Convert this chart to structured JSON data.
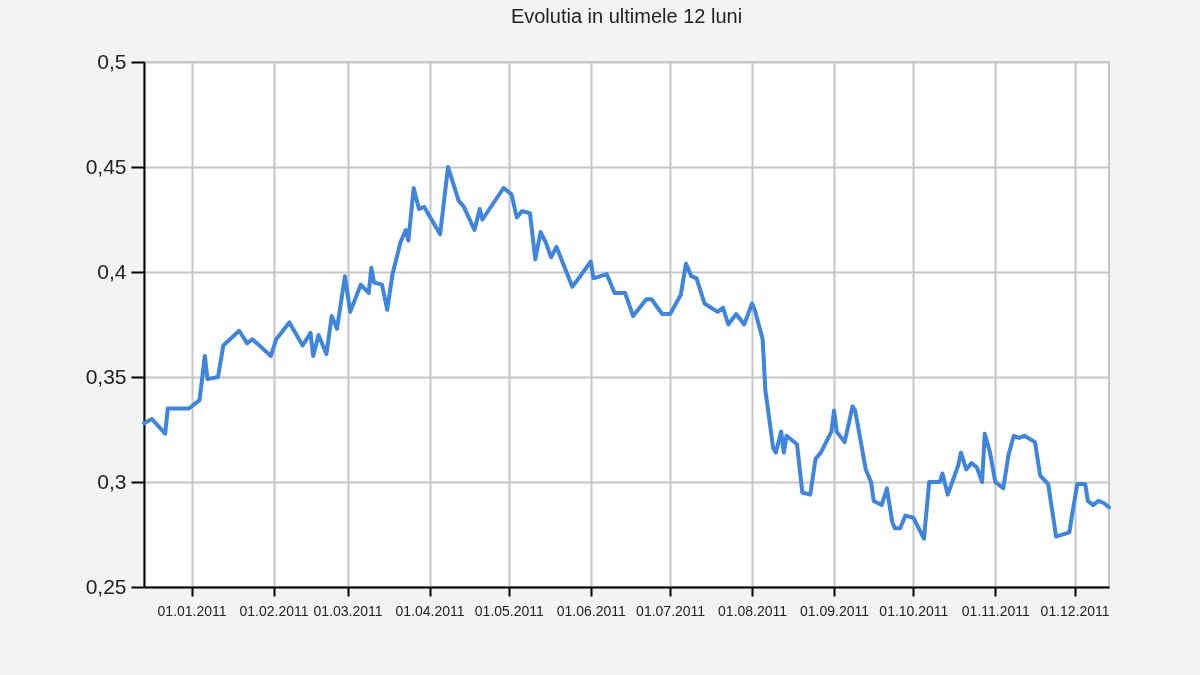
{
  "chart_data": {
    "type": "line",
    "title": "Evolutia in ultimele 12 luni",
    "x": [
      "2010-12-14",
      "2010-12-17",
      "2010-12-22",
      "2010-12-23",
      "2010-12-31",
      "2011-01-04",
      "2011-01-06",
      "2011-01-07",
      "2011-01-11",
      "2011-01-13",
      "2011-01-19",
      "2011-01-22",
      "2011-01-24",
      "2011-01-31",
      "2011-02-02",
      "2011-02-07",
      "2011-02-12",
      "2011-02-15",
      "2011-02-16",
      "2011-02-18",
      "2011-02-21",
      "2011-02-23",
      "2011-02-25",
      "2011-02-28",
      "2011-03-02",
      "2011-03-06",
      "2011-03-09",
      "2011-03-10",
      "2011-03-11",
      "2011-03-14",
      "2011-03-16",
      "2011-03-18",
      "2011-03-21",
      "2011-03-23",
      "2011-03-24",
      "2011-03-26",
      "2011-03-28",
      "2011-03-30",
      "2011-04-05",
      "2011-04-08",
      "2011-04-12",
      "2011-04-14",
      "2011-04-18",
      "2011-04-20",
      "2011-04-21",
      "2011-04-29",
      "2011-05-02",
      "2011-05-04",
      "2011-05-06",
      "2011-05-09",
      "2011-05-11",
      "2011-05-13",
      "2011-05-15",
      "2011-05-17",
      "2011-05-19",
      "2011-05-25",
      "2011-05-28",
      "2011-06-01",
      "2011-06-02",
      "2011-06-07",
      "2011-06-10",
      "2011-06-14",
      "2011-06-17",
      "2011-06-22",
      "2011-06-24",
      "2011-06-28",
      "2011-07-01",
      "2011-07-05",
      "2011-07-07",
      "2011-07-09",
      "2011-07-11",
      "2011-07-14",
      "2011-07-19",
      "2011-07-21",
      "2011-07-23",
      "2011-07-26",
      "2011-07-29",
      "2011-08-01",
      "2011-08-02",
      "2011-08-05",
      "2011-08-06",
      "2011-08-09",
      "2011-08-10",
      "2011-08-12",
      "2011-08-13",
      "2011-08-14",
      "2011-08-18",
      "2011-08-20",
      "2011-08-23",
      "2011-08-25",
      "2011-08-27",
      "2011-08-31",
      "2011-09-01",
      "2011-09-02",
      "2011-09-05",
      "2011-09-08",
      "2011-09-09",
      "2011-09-13",
      "2011-09-15",
      "2011-09-16",
      "2011-09-19",
      "2011-09-21",
      "2011-09-23",
      "2011-09-24",
      "2011-09-26",
      "2011-09-28",
      "2011-10-01",
      "2011-10-05",
      "2011-10-07",
      "2011-10-11",
      "2011-10-12",
      "2011-10-14",
      "2011-10-18",
      "2011-10-19",
      "2011-10-21",
      "2011-10-23",
      "2011-10-25",
      "2011-10-27",
      "2011-10-28",
      "2011-10-30",
      "2011-11-01",
      "2011-11-04",
      "2011-11-06",
      "2011-11-08",
      "2011-11-10",
      "2011-11-12",
      "2011-11-16",
      "2011-11-18",
      "2011-11-21",
      "2011-11-24",
      "2011-11-29",
      "2011-11-30",
      "2011-12-02",
      "2011-12-05",
      "2011-12-06",
      "2011-12-08",
      "2011-12-10",
      "2011-12-12",
      "2011-12-14"
    ],
    "series": [
      {
        "color": "#3d85de",
        "values": [
          0.328,
          0.33,
          0.323,
          0.335,
          0.335,
          0.339,
          0.36,
          0.349,
          0.35,
          0.365,
          0.372,
          0.366,
          0.368,
          0.36,
          0.368,
          0.376,
          0.365,
          0.371,
          0.36,
          0.37,
          0.361,
          0.379,
          0.373,
          0.398,
          0.381,
          0.394,
          0.39,
          0.402,
          0.395,
          0.394,
          0.382,
          0.399,
          0.414,
          0.42,
          0.415,
          0.44,
          0.43,
          0.431,
          0.418,
          0.45,
          0.434,
          0.431,
          0.42,
          0.43,
          0.425,
          0.44,
          0.437,
          0.426,
          0.429,
          0.428,
          0.406,
          0.419,
          0.414,
          0.407,
          0.412,
          0.393,
          0.398,
          0.405,
          0.397,
          0.399,
          0.39,
          0.39,
          0.379,
          0.387,
          0.387,
          0.38,
          0.38,
          0.389,
          0.404,
          0.398,
          0.397,
          0.385,
          0.381,
          0.383,
          0.375,
          0.38,
          0.375,
          0.385,
          0.382,
          0.368,
          0.344,
          0.316,
          0.314,
          0.324,
          0.314,
          0.322,
          0.318,
          0.295,
          0.294,
          0.311,
          0.314,
          0.324,
          0.334,
          0.324,
          0.319,
          0.336,
          0.334,
          0.306,
          0.3,
          0.291,
          0.289,
          0.297,
          0.281,
          0.278,
          0.278,
          0.284,
          0.283,
          0.273,
          0.3,
          0.3,
          0.304,
          0.294,
          0.308,
          0.314,
          0.306,
          0.309,
          0.307,
          0.3,
          0.323,
          0.314,
          0.3,
          0.297,
          0.313,
          0.322,
          0.321,
          0.322,
          0.319,
          0.303,
          0.299,
          0.274,
          0.276,
          0.284,
          0.299,
          0.299,
          0.291,
          0.289,
          0.291,
          0.29,
          0.288
        ]
      }
    ],
    "xlim": [
      "2010-12-14",
      "2011-12-14"
    ],
    "xticks": [
      {
        "value": "2011-01-01",
        "label": "01.01.2011"
      },
      {
        "value": "2011-02-01",
        "label": "01.02.2011"
      },
      {
        "value": "2011-03-01",
        "label": "01.03.2011"
      },
      {
        "value": "2011-04-01",
        "label": "01.04.2011"
      },
      {
        "value": "2011-05-01",
        "label": "01.05.2011"
      },
      {
        "value": "2011-06-01",
        "label": "01.06.2011"
      },
      {
        "value": "2011-07-01",
        "label": "01.07.2011"
      },
      {
        "value": "2011-08-01",
        "label": "01.08.2011"
      },
      {
        "value": "2011-09-01",
        "label": "01.09.2011"
      },
      {
        "value": "2011-10-01",
        "label": "01.10.2011"
      },
      {
        "value": "2011-11-01",
        "label": "01.11.2011"
      },
      {
        "value": "2011-12-01",
        "label": "01.12.2011"
      }
    ],
    "ylim": [
      0.25,
      0.5
    ],
    "yticks": [
      {
        "value": 0.25,
        "label": "0,25"
      },
      {
        "value": 0.3,
        "label": "0,3"
      },
      {
        "value": 0.35,
        "label": "0,35"
      },
      {
        "value": 0.4,
        "label": "0,4"
      },
      {
        "value": 0.45,
        "label": "0,45"
      },
      {
        "value": 0.5,
        "label": "0,5"
      }
    ],
    "grid": true,
    "line_style": "solid"
  }
}
